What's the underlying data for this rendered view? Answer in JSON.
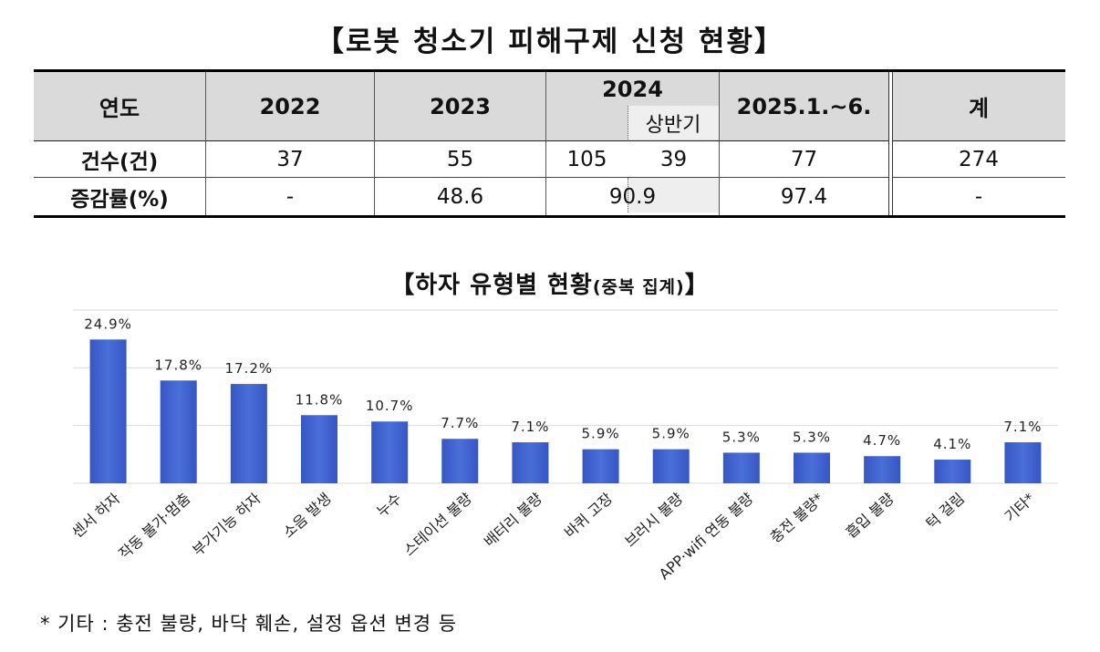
{
  "table": {
    "title": "【로봇 청소기 피해구제 신청 현황】",
    "header": {
      "label": "연도",
      "y2022": "2022",
      "y2023": "2023",
      "y2024": "2024",
      "y2024_sub": "상반기",
      "y2025": "2025.1.~6.",
      "total": "계"
    },
    "rows": [
      {
        "label": "건수(건)",
        "y2022": "37",
        "y2023": "55",
        "y2024": "105",
        "y2024_sub": "39",
        "y2025": "77",
        "total": "274"
      },
      {
        "label": "증감률(%)",
        "y2022": "-",
        "y2023": "48.6",
        "y2024": "90.9",
        "y2025": "97.4",
        "total": "-"
      }
    ]
  },
  "chart_title": "【하자 유형별 현황",
  "chart_title_sub": "(중복 집계)",
  "chart_title_end": "】",
  "chart_data": {
    "type": "bar",
    "title": "【하자 유형별 현황(중복 집계)】",
    "categories": [
      "센서 하자",
      "작동 불가·멈춤",
      "부가기능 하자",
      "소음 발생",
      "누수",
      "스테이션 불량",
      "배터리 불량",
      "바퀴 고장",
      "브러시 불량",
      "APP·wifi 연동 불량",
      "충전 불량*",
      "흡입 불량",
      "턱 걸림",
      "기타*"
    ],
    "values": [
      24.9,
      17.8,
      17.2,
      11.8,
      10.7,
      7.7,
      7.1,
      5.9,
      5.9,
      5.3,
      5.3,
      4.7,
      4.1,
      7.1
    ],
    "value_labels": [
      "24.9%",
      "17.8%",
      "17.2%",
      "11.8%",
      "10.7%",
      "7.7%",
      "7.1%",
      "5.9%",
      "5.9%",
      "5.3%",
      "5.3%",
      "4.7%",
      "4.1%",
      "7.1%"
    ],
    "ylim": [
      0,
      30
    ],
    "grid": true,
    "legend": "none",
    "bar_color": "#4a6fd8"
  },
  "footnote": "* 기타 : 충전 불량, 바닥 훼손, 설정 옵션 변경 등"
}
